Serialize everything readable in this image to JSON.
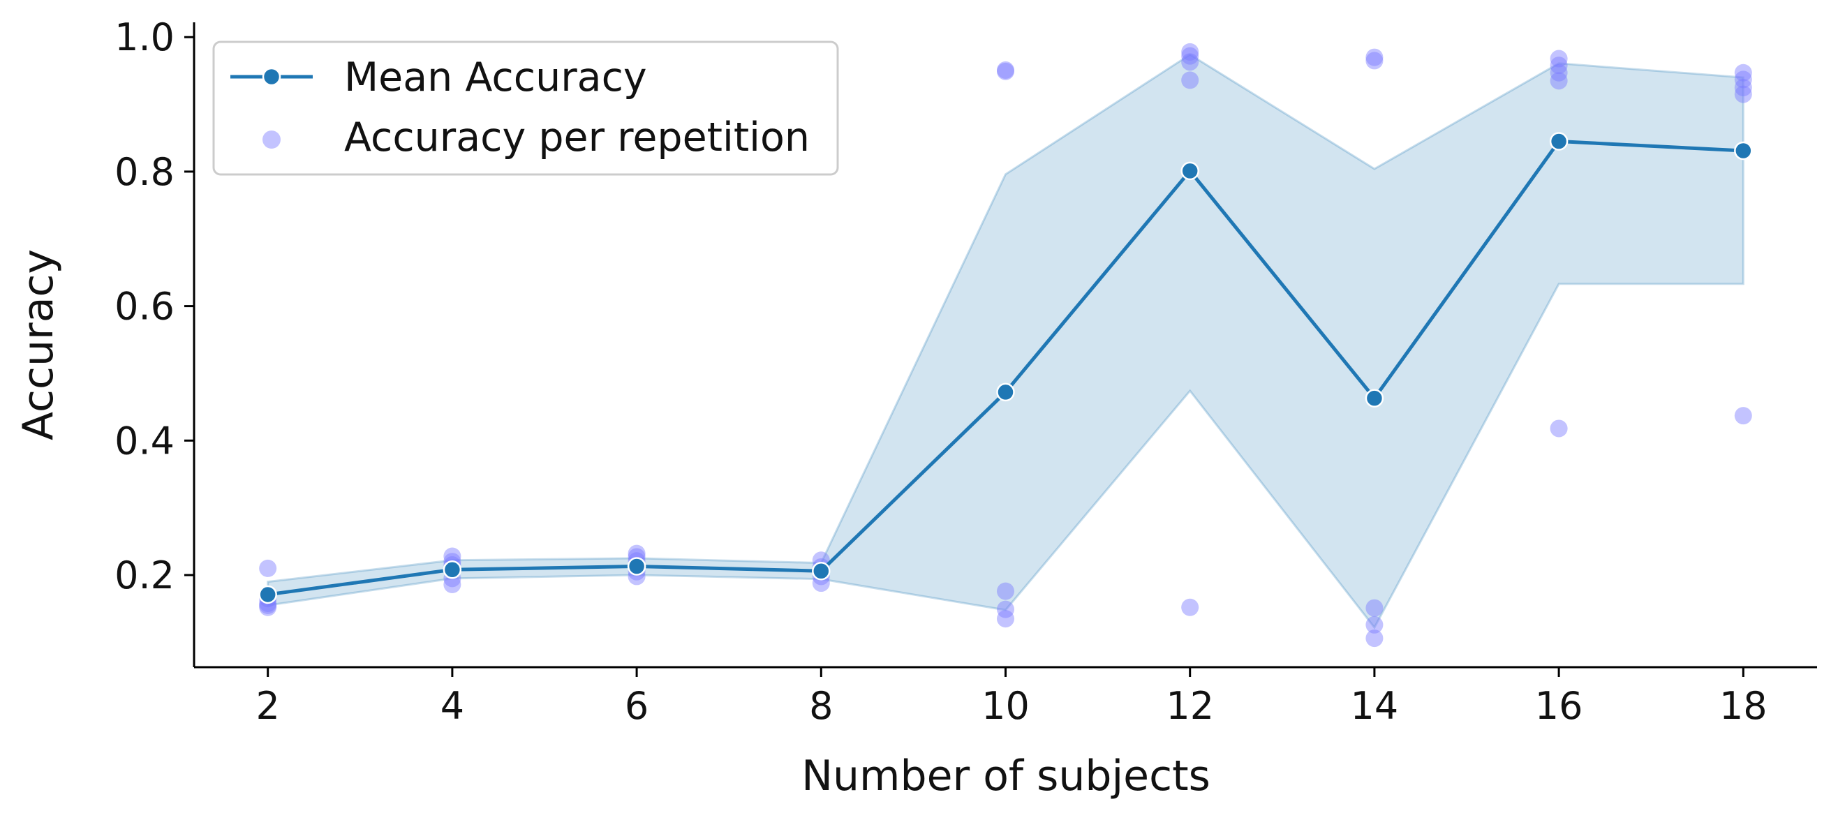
{
  "chart_data": {
    "type": "line",
    "xlabel": "Number of subjects",
    "ylabel": "Accuracy",
    "x": [
      2,
      4,
      6,
      8,
      10,
      12,
      14,
      16,
      18
    ],
    "xticks": [
      "2",
      "4",
      "6",
      "8",
      "10",
      "12",
      "14",
      "16",
      "18"
    ],
    "yticks": [
      "0.2",
      "0.4",
      "0.6",
      "0.8",
      "1.0"
    ],
    "ytick_values": [
      0.2,
      0.4,
      0.6,
      0.8,
      1.0
    ],
    "xlim": [
      1.2,
      18.8
    ],
    "ylim": [
      0.063,
      1.022
    ],
    "grid": false,
    "legend_position": "top-left",
    "series": [
      {
        "name": "Mean Accuracy",
        "kind": "line-with-markers",
        "color": "#1f77b4",
        "y": [
          0.171,
          0.208,
          0.213,
          0.206,
          0.472,
          0.801,
          0.463,
          0.845,
          0.831
        ]
      },
      {
        "name": "Accuracy per repetition",
        "kind": "scatter",
        "color": "#7b7bff",
        "points": [
          [
            2,
            0.21
          ],
          [
            2,
            0.155
          ],
          [
            2,
            0.152
          ],
          [
            2,
            0.158
          ],
          [
            2,
            0.165
          ],
          [
            4,
            0.228
          ],
          [
            4,
            0.22
          ],
          [
            4,
            0.215
          ],
          [
            4,
            0.195
          ],
          [
            4,
            0.186
          ],
          [
            6,
            0.232
          ],
          [
            6,
            0.227
          ],
          [
            6,
            0.221
          ],
          [
            6,
            0.205
          ],
          [
            6,
            0.198
          ],
          [
            8,
            0.222
          ],
          [
            8,
            0.212
          ],
          [
            8,
            0.205
          ],
          [
            8,
            0.198
          ],
          [
            8,
            0.188
          ],
          [
            10,
            0.951
          ],
          [
            10,
            0.949
          ],
          [
            10,
            0.176
          ],
          [
            10,
            0.149
          ],
          [
            10,
            0.135
          ],
          [
            12,
            0.978
          ],
          [
            12,
            0.972
          ],
          [
            12,
            0.963
          ],
          [
            12,
            0.936
          ],
          [
            12,
            0.152
          ],
          [
            14,
            0.97
          ],
          [
            14,
            0.965
          ],
          [
            14,
            0.151
          ],
          [
            14,
            0.126
          ],
          [
            14,
            0.106
          ],
          [
            16,
            0.968
          ],
          [
            16,
            0.958
          ],
          [
            16,
            0.947
          ],
          [
            16,
            0.935
          ],
          [
            16,
            0.418
          ],
          [
            18,
            0.947
          ],
          [
            18,
            0.937
          ],
          [
            18,
            0.925
          ],
          [
            18,
            0.915
          ],
          [
            18,
            0.437
          ]
        ]
      }
    ],
    "confidence_band": {
      "color": "#1f77b4",
      "lower": [
        0.155,
        0.195,
        0.2,
        0.194,
        0.148,
        0.474,
        0.122,
        0.633,
        0.633
      ],
      "upper": [
        0.19,
        0.222,
        0.225,
        0.218,
        0.796,
        0.974,
        0.804,
        0.961,
        0.94
      ]
    }
  }
}
